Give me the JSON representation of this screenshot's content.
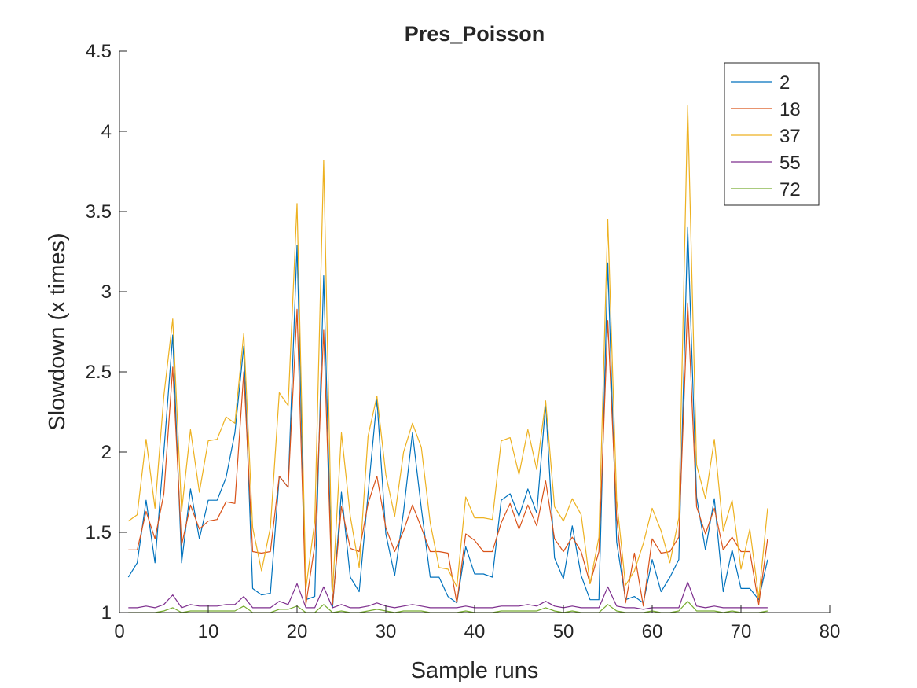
{
  "chart_data": {
    "type": "line",
    "title": "Pres_Poisson",
    "xlabel": "Sample runs",
    "ylabel": "Slowdown (x times)",
    "xlim": [
      0,
      80
    ],
    "ylim": [
      1,
      4.5
    ],
    "xticks": [
      "0",
      "10",
      "20",
      "30",
      "40",
      "50",
      "60",
      "70",
      "80"
    ],
    "yticks": [
      "1",
      "1.5",
      "2",
      "2.5",
      "3",
      "3.5",
      "4",
      "4.5"
    ],
    "grid": false,
    "legend_position": "top-right",
    "x": [
      1,
      2,
      3,
      4,
      5,
      6,
      7,
      8,
      9,
      10,
      11,
      12,
      13,
      14,
      15,
      16,
      17,
      18,
      19,
      20,
      21,
      22,
      23,
      24,
      25,
      26,
      27,
      28,
      29,
      30,
      31,
      32,
      33,
      34,
      35,
      36,
      37,
      38,
      39,
      40,
      41,
      42,
      43,
      44,
      45,
      46,
      47,
      48,
      49,
      50,
      51,
      52,
      53,
      54,
      55,
      56,
      57,
      58,
      59,
      60,
      61,
      62,
      63,
      64,
      65,
      66,
      67,
      68,
      69,
      70,
      71,
      72,
      73
    ],
    "series": [
      {
        "name": "2",
        "color": "#0072BD",
        "values": [
          1.22,
          1.31,
          1.7,
          1.31,
          2.0,
          2.73,
          1.31,
          1.77,
          1.46,
          1.7,
          1.7,
          1.84,
          2.12,
          2.66,
          1.15,
          1.11,
          1.12,
          1.85,
          1.78,
          3.29,
          1.08,
          1.1,
          3.1,
          1.03,
          1.75,
          1.22,
          1.13,
          1.74,
          2.33,
          1.49,
          1.23,
          1.63,
          2.12,
          1.65,
          1.22,
          1.22,
          1.1,
          1.06,
          1.41,
          1.24,
          1.24,
          1.22,
          1.7,
          1.74,
          1.6,
          1.77,
          1.62,
          2.3,
          1.34,
          1.21,
          1.54,
          1.23,
          1.08,
          1.08,
          3.18,
          1.44,
          1.08,
          1.1,
          1.06,
          1.33,
          1.13,
          1.22,
          1.33,
          3.4,
          1.72,
          1.39,
          1.71,
          1.13,
          1.39,
          1.15,
          1.15,
          1.08,
          1.33
        ]
      },
      {
        "name": "18",
        "color": "#D95319",
        "values": [
          1.39,
          1.39,
          1.63,
          1.46,
          1.74,
          2.53,
          1.42,
          1.67,
          1.52,
          1.57,
          1.58,
          1.69,
          1.68,
          2.5,
          1.38,
          1.37,
          1.38,
          1.85,
          1.78,
          2.89,
          1.05,
          1.42,
          2.76,
          1.05,
          1.66,
          1.4,
          1.38,
          1.68,
          1.85,
          1.53,
          1.38,
          1.51,
          1.67,
          1.53,
          1.38,
          1.38,
          1.37,
          1.06,
          1.49,
          1.45,
          1.38,
          1.38,
          1.56,
          1.68,
          1.52,
          1.67,
          1.54,
          1.82,
          1.46,
          1.38,
          1.47,
          1.38,
          1.18,
          1.38,
          2.82,
          1.59,
          1.06,
          1.37,
          1.04,
          1.46,
          1.37,
          1.38,
          1.47,
          2.93,
          1.66,
          1.49,
          1.65,
          1.39,
          1.47,
          1.38,
          1.38,
          1.05,
          1.46
        ]
      },
      {
        "name": "37",
        "color": "#EDB120",
        "values": [
          1.57,
          1.61,
          2.08,
          1.65,
          2.35,
          2.83,
          1.63,
          2.14,
          1.75,
          2.07,
          2.08,
          2.22,
          2.18,
          2.74,
          1.53,
          1.26,
          1.53,
          2.37,
          2.29,
          3.55,
          1.15,
          1.57,
          3.82,
          1.13,
          2.12,
          1.6,
          1.28,
          2.1,
          2.35,
          1.86,
          1.6,
          2.0,
          2.18,
          2.03,
          1.56,
          1.28,
          1.27,
          1.16,
          1.72,
          1.59,
          1.59,
          1.58,
          2.07,
          2.09,
          1.86,
          2.14,
          1.89,
          2.32,
          1.66,
          1.57,
          1.71,
          1.61,
          1.18,
          1.47,
          3.45,
          1.7,
          1.17,
          1.26,
          1.43,
          1.65,
          1.51,
          1.31,
          1.59,
          4.16,
          1.92,
          1.71,
          2.08,
          1.51,
          1.7,
          1.27,
          1.52,
          1.09,
          1.65
        ]
      },
      {
        "name": "55",
        "color": "#7E2F8E",
        "values": [
          1.03,
          1.03,
          1.04,
          1.03,
          1.05,
          1.11,
          1.03,
          1.05,
          1.04,
          1.04,
          1.04,
          1.05,
          1.05,
          1.1,
          1.03,
          1.03,
          1.03,
          1.07,
          1.05,
          1.18,
          1.03,
          1.03,
          1.16,
          1.03,
          1.05,
          1.03,
          1.03,
          1.04,
          1.06,
          1.04,
          1.03,
          1.04,
          1.05,
          1.04,
          1.03,
          1.03,
          1.03,
          1.03,
          1.04,
          1.03,
          1.03,
          1.03,
          1.04,
          1.04,
          1.04,
          1.05,
          1.04,
          1.07,
          1.04,
          1.03,
          1.04,
          1.03,
          1.03,
          1.03,
          1.16,
          1.04,
          1.03,
          1.03,
          1.02,
          1.03,
          1.03,
          1.03,
          1.03,
          1.19,
          1.04,
          1.03,
          1.04,
          1.03,
          1.03,
          1.03,
          1.03,
          1.03,
          1.03
        ]
      },
      {
        "name": "72",
        "color": "#77AC30",
        "values": [
          1.0,
          1.0,
          1.0,
          1.0,
          1.01,
          1.03,
          1.0,
          1.01,
          1.01,
          1.01,
          1.01,
          1.01,
          1.01,
          1.04,
          1.0,
          1.0,
          1.0,
          1.02,
          1.02,
          1.04,
          1.0,
          1.0,
          1.05,
          1.0,
          1.01,
          1.0,
          1.0,
          1.01,
          1.02,
          1.01,
          1.0,
          1.01,
          1.01,
          1.01,
          1.0,
          1.0,
          1.0,
          1.0,
          1.01,
          1.0,
          1.0,
          1.0,
          1.01,
          1.01,
          1.01,
          1.01,
          1.01,
          1.03,
          1.01,
          1.0,
          1.01,
          1.0,
          1.0,
          1.0,
          1.05,
          1.01,
          1.0,
          1.0,
          1.0,
          1.01,
          1.0,
          1.0,
          1.01,
          1.07,
          1.01,
          1.01,
          1.01,
          1.0,
          1.01,
          1.0,
          1.0,
          1.0,
          1.01
        ]
      }
    ]
  }
}
